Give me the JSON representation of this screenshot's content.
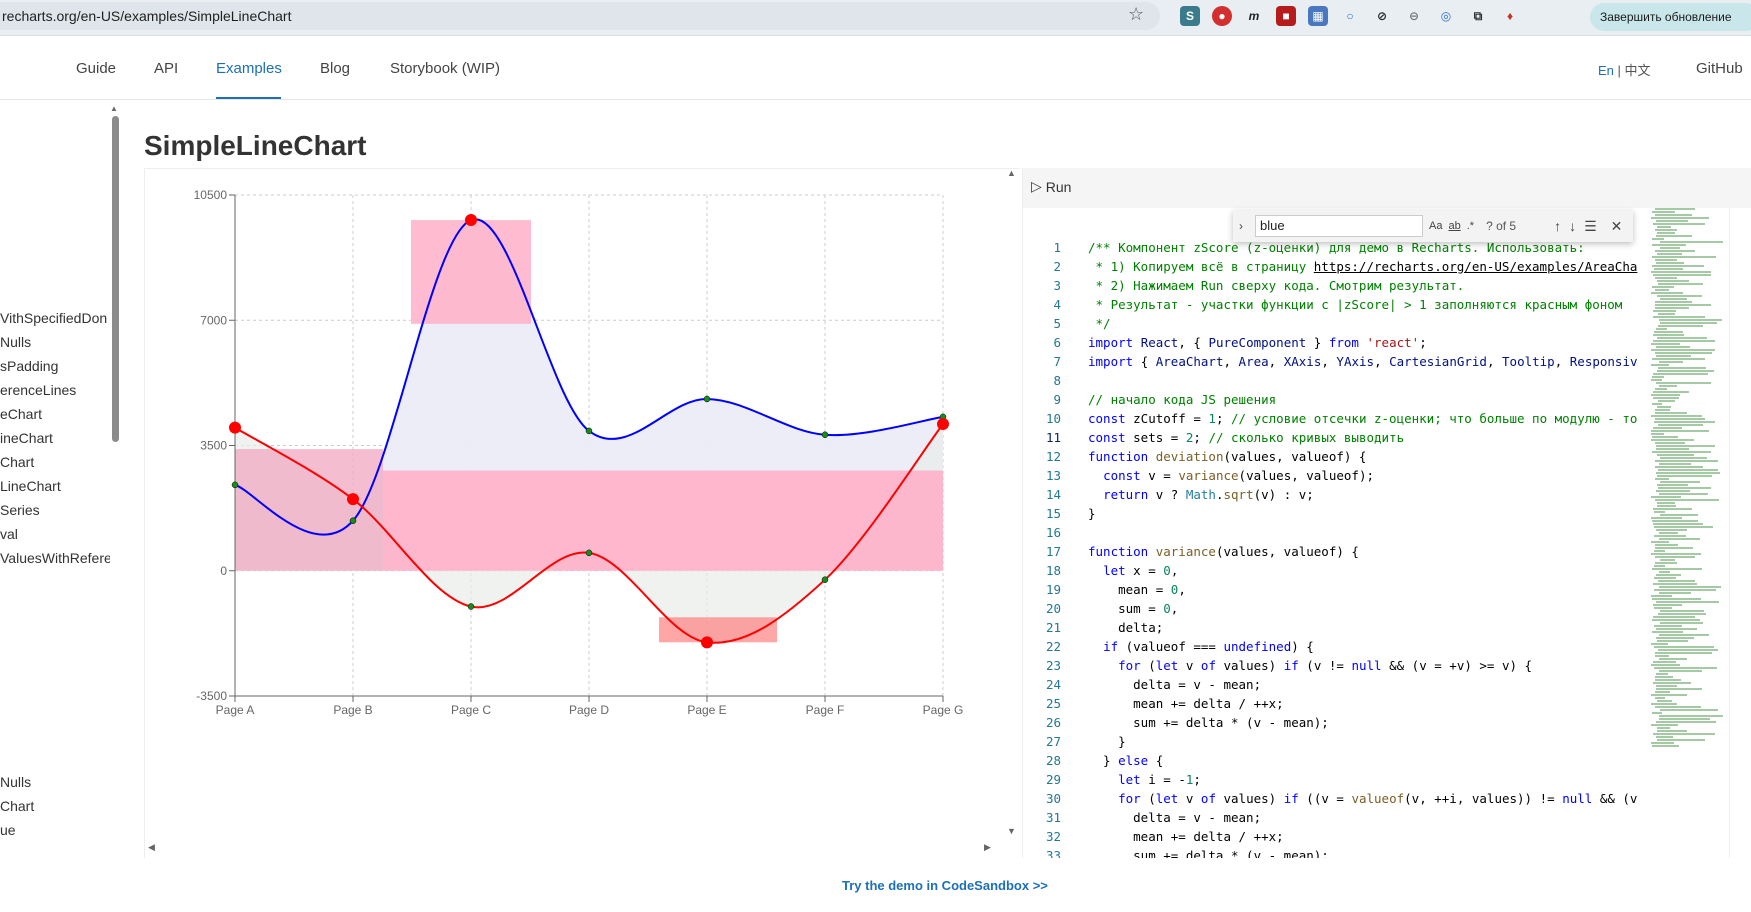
{
  "browser": {
    "url": "recharts.org/en-US/examples/SimpleLineChart",
    "update_button": "Завершить обновление"
  },
  "nav": {
    "items": [
      "Guide",
      "API",
      "Examples",
      "Blog",
      "Storybook (WIP)"
    ],
    "active": "Examples",
    "lang_en": "En",
    "lang_zh": "中文",
    "github": "GitHub"
  },
  "sidebar": {
    "items_top": [
      "VithSpecifiedDon",
      "Nulls",
      "sPadding",
      "erenceLines",
      "eChart",
      "ineChart",
      "Chart",
      "LineChart",
      "Series",
      "val",
      "ValuesWithRefere"
    ],
    "items_bottom": [
      "Nulls",
      "Chart",
      "ue"
    ]
  },
  "page_title": "SimpleLineChart",
  "chart_data": {
    "type": "area",
    "categories": [
      "Page A",
      "Page B",
      "Page C",
      "Page D",
      "Page E",
      "Page F",
      "Page G"
    ],
    "yticks": [
      -3500,
      0,
      3500,
      7000,
      10500
    ],
    "ylim": [
      -3500,
      10500
    ],
    "grid": true,
    "series": [
      {
        "values": [
          2400,
          1398,
          9800,
          3908,
          4800,
          3800,
          4300
        ],
        "color": "#0000ff"
      },
      {
        "values": [
          4000,
          2000,
          -1000,
          500,
          -2000,
          -250,
          4100
        ],
        "color": "#ff0000"
      }
    ]
  },
  "colors": {
    "blue_line": "#0000ff",
    "red_line": "#ff0000",
    "dot_green": "#1a8c1a",
    "highlight_pink": "#ffb0c8",
    "lavender": "#eeeeff"
  },
  "editor": {
    "run_label": "Run",
    "find_query": "blue",
    "find_count": "? of 5",
    "find_opts": [
      "Aa",
      "ab",
      ".*"
    ],
    "current_line": 11,
    "lines": [
      [
        [
          "c-com",
          "/** Компонент zScore (z-оценки) для демо в Recharts. Использовать:"
        ]
      ],
      [
        [
          "c-com",
          " * 1) Копируем всё в страницу "
        ],
        [
          "c-link",
          "https://recharts.org/en-US/examples/AreaCha"
        ]
      ],
      [
        [
          "c-com",
          " * 2) Нажимаем Run сверху кода. Смотрим результат."
        ]
      ],
      [
        [
          "c-com",
          " * Результат - участки функции с |zScore| > 1 заполняются красным фоном"
        ]
      ],
      [
        [
          "c-com",
          " */"
        ]
      ],
      [
        [
          "c-kw",
          "import "
        ],
        [
          "c-id",
          "React"
        ],
        [
          "c-pl",
          ", { "
        ],
        [
          "c-id",
          "PureComponent"
        ],
        [
          "c-pl",
          " } "
        ],
        [
          "c-kw",
          "from "
        ],
        [
          "c-str",
          "'react'"
        ],
        [
          "c-pl",
          ";"
        ]
      ],
      [
        [
          "c-kw",
          "import "
        ],
        [
          "c-pl",
          "{ "
        ],
        [
          "c-id",
          "AreaChart"
        ],
        [
          "c-pl",
          ", "
        ],
        [
          "c-id",
          "Area"
        ],
        [
          "c-pl",
          ", "
        ],
        [
          "c-id",
          "XAxis"
        ],
        [
          "c-pl",
          ", "
        ],
        [
          "c-id",
          "YAxis"
        ],
        [
          "c-pl",
          ", "
        ],
        [
          "c-id",
          "CartesianGrid"
        ],
        [
          "c-pl",
          ", "
        ],
        [
          "c-id",
          "Tooltip"
        ],
        [
          "c-pl",
          ", "
        ],
        [
          "c-id",
          "Responsiv"
        ]
      ],
      [
        [
          "c-pl",
          ""
        ]
      ],
      [
        [
          "c-com",
          "// начало кода JS решения"
        ]
      ],
      [
        [
          "c-kw",
          "const "
        ],
        [
          "c-pl",
          "zCutoff = "
        ],
        [
          "c-num",
          "1"
        ],
        [
          "c-pl",
          "; "
        ],
        [
          "c-com",
          "// условие отсечки z-оценки; что больше по модулю - то"
        ]
      ],
      [
        [
          "c-kw",
          "const "
        ],
        [
          "c-pl",
          "sets = "
        ],
        [
          "c-num",
          "2"
        ],
        [
          "c-pl",
          "; "
        ],
        [
          "c-com",
          "// сколько кривых выводить"
        ]
      ],
      [
        [
          "c-kw",
          "function "
        ],
        [
          "c-fn",
          "deviation"
        ],
        [
          "c-pl",
          "(values, valueof) {"
        ]
      ],
      [
        [
          "c-pl",
          "  "
        ],
        [
          "c-kw",
          "const "
        ],
        [
          "c-pl",
          "v = "
        ],
        [
          "c-fn",
          "variance"
        ],
        [
          "c-pl",
          "(values, valueof);"
        ]
      ],
      [
        [
          "c-pl",
          "  "
        ],
        [
          "c-kw",
          "return "
        ],
        [
          "c-pl",
          "v ? "
        ],
        [
          "c-type",
          "Math"
        ],
        [
          "c-pl",
          "."
        ],
        [
          "c-fn",
          "sqrt"
        ],
        [
          "c-pl",
          "(v) : v;"
        ]
      ],
      [
        [
          "c-pl",
          "}"
        ]
      ],
      [
        [
          "c-pl",
          ""
        ]
      ],
      [
        [
          "c-kw",
          "function "
        ],
        [
          "c-fn",
          "variance"
        ],
        [
          "c-pl",
          "(values, valueof) {"
        ]
      ],
      [
        [
          "c-pl",
          "  "
        ],
        [
          "c-kw",
          "let "
        ],
        [
          "c-pl",
          "x = "
        ],
        [
          "c-num",
          "0"
        ],
        [
          "c-pl",
          ","
        ]
      ],
      [
        [
          "c-pl",
          "    mean = "
        ],
        [
          "c-num",
          "0"
        ],
        [
          "c-pl",
          ","
        ]
      ],
      [
        [
          "c-pl",
          "    sum = "
        ],
        [
          "c-num",
          "0"
        ],
        [
          "c-pl",
          ","
        ]
      ],
      [
        [
          "c-pl",
          "    delta;"
        ]
      ],
      [
        [
          "c-pl",
          "  "
        ],
        [
          "c-kw",
          "if "
        ],
        [
          "c-pl",
          "(valueof === "
        ],
        [
          "c-kw",
          "undefined"
        ],
        [
          "c-pl",
          ") {"
        ]
      ],
      [
        [
          "c-pl",
          "    "
        ],
        [
          "c-kw",
          "for "
        ],
        [
          "c-pl",
          "("
        ],
        [
          "c-kw",
          "let "
        ],
        [
          "c-pl",
          "v "
        ],
        [
          "c-kw",
          "of "
        ],
        [
          "c-pl",
          "values) "
        ],
        [
          "c-kw",
          "if "
        ],
        [
          "c-pl",
          "(v != "
        ],
        [
          "c-kw",
          "null "
        ],
        [
          "c-pl",
          "&& (v = +v) >= v) {"
        ]
      ],
      [
        [
          "c-pl",
          "      delta = v - mean;"
        ]
      ],
      [
        [
          "c-pl",
          "      mean += delta / ++x;"
        ]
      ],
      [
        [
          "c-pl",
          "      sum += delta * (v - mean);"
        ]
      ],
      [
        [
          "c-pl",
          "    }"
        ]
      ],
      [
        [
          "c-pl",
          "  } "
        ],
        [
          "c-kw",
          "else "
        ],
        [
          "c-pl",
          "{"
        ]
      ],
      [
        [
          "c-pl",
          "    "
        ],
        [
          "c-kw",
          "let "
        ],
        [
          "c-pl",
          "i = -"
        ],
        [
          "c-num",
          "1"
        ],
        [
          "c-pl",
          ";"
        ]
      ],
      [
        [
          "c-pl",
          "    "
        ],
        [
          "c-kw",
          "for "
        ],
        [
          "c-pl",
          "("
        ],
        [
          "c-kw",
          "let "
        ],
        [
          "c-pl",
          "v "
        ],
        [
          "c-kw",
          "of "
        ],
        [
          "c-pl",
          "values) "
        ],
        [
          "c-kw",
          "if "
        ],
        [
          "c-pl",
          "((v = "
        ],
        [
          "c-fn",
          "valueof"
        ],
        [
          "c-pl",
          "(v, ++i, values)) != "
        ],
        [
          "c-kw",
          "null "
        ],
        [
          "c-pl",
          "&& (v"
        ]
      ],
      [
        [
          "c-pl",
          "      delta = v - mean;"
        ]
      ],
      [
        [
          "c-pl",
          "      mean += delta / ++x;"
        ]
      ],
      [
        [
          "c-pl",
          "      sum += delta * (v - mean);"
        ]
      ]
    ]
  },
  "sandbox_link": "Try the demo in CodeSandbox >>"
}
